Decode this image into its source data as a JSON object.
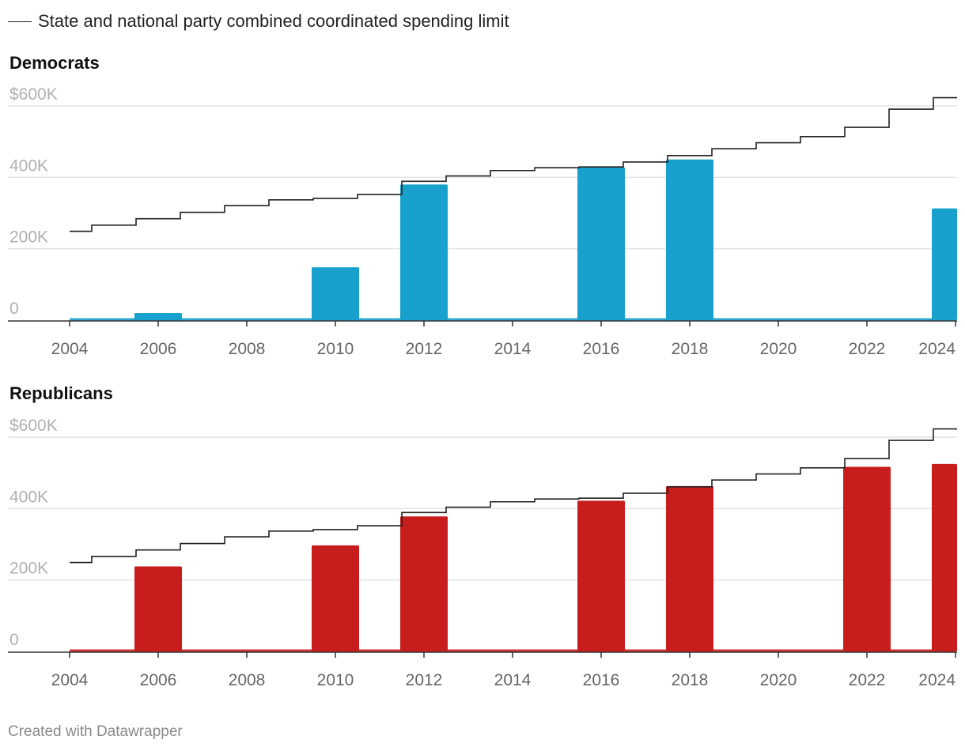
{
  "legend": {
    "label": "State and national party combined coordinated spending limit",
    "color": "#222222"
  },
  "footer": {
    "credit": "Created with Datawrapper"
  },
  "chart_data": [
    {
      "type": "bar",
      "title": "Democrats",
      "color": "#18a1cd",
      "ylim": [
        0,
        600000
      ],
      "yticks": [
        {
          "value": 0,
          "label": "0"
        },
        {
          "value": 200000,
          "label": "200K"
        },
        {
          "value": 400000,
          "label": "400K"
        },
        {
          "value": 600000,
          "label": "$600K"
        }
      ],
      "xticks": [
        {
          "value": 2004,
          "label": "2004"
        },
        {
          "value": 2006,
          "label": "2006"
        },
        {
          "value": 2008,
          "label": "2008"
        },
        {
          "value": 2010,
          "label": "2010"
        },
        {
          "value": 2012,
          "label": "2012"
        },
        {
          "value": 2014,
          "label": "2014"
        },
        {
          "value": 2016,
          "label": "2016"
        },
        {
          "value": 2018,
          "label": "2018"
        },
        {
          "value": 2020,
          "label": "2020"
        },
        {
          "value": 2022,
          "label": "2022"
        },
        {
          "value": 2024,
          "label": "2024"
        }
      ],
      "years": [
        2004,
        2006,
        2008,
        2010,
        2012,
        2014,
        2016,
        2018,
        2020,
        2022,
        2024
      ],
      "values": [
        0,
        20000,
        0,
        148000,
        380000,
        0,
        428000,
        450000,
        0,
        0,
        313000
      ],
      "limit": {
        "name": "State and national party combined coordinated spending limit",
        "years": [
          2004,
          2005,
          2006,
          2007,
          2008,
          2009,
          2010,
          2011,
          2012,
          2013,
          2014,
          2015,
          2016,
          2017,
          2018,
          2019,
          2020,
          2021,
          2022,
          2023,
          2024
        ],
        "values": [
          249000,
          266000,
          284000,
          302000,
          321000,
          337000,
          341000,
          352000,
          389000,
          404000,
          419000,
          427000,
          429000,
          443000,
          461000,
          480000,
          497000,
          514000,
          540000,
          591000,
          623000
        ]
      }
    },
    {
      "type": "bar",
      "title": "Republicans",
      "color": "#c71e1d",
      "ylim": [
        0,
        600000
      ],
      "yticks": [
        {
          "value": 0,
          "label": "0"
        },
        {
          "value": 200000,
          "label": "200K"
        },
        {
          "value": 400000,
          "label": "400K"
        },
        {
          "value": 600000,
          "label": "$600K"
        }
      ],
      "xticks": [
        {
          "value": 2004,
          "label": "2004"
        },
        {
          "value": 2006,
          "label": "2006"
        },
        {
          "value": 2008,
          "label": "2008"
        },
        {
          "value": 2010,
          "label": "2010"
        },
        {
          "value": 2012,
          "label": "2012"
        },
        {
          "value": 2014,
          "label": "2014"
        },
        {
          "value": 2016,
          "label": "2016"
        },
        {
          "value": 2018,
          "label": "2018"
        },
        {
          "value": 2020,
          "label": "2020"
        },
        {
          "value": 2022,
          "label": "2022"
        },
        {
          "value": 2024,
          "label": "2024"
        }
      ],
      "years": [
        2004,
        2006,
        2008,
        2010,
        2012,
        2014,
        2016,
        2018,
        2020,
        2022,
        2024
      ],
      "values": [
        0,
        238000,
        0,
        297000,
        378000,
        0,
        422000,
        463000,
        0,
        517000,
        525000
      ],
      "limit": {
        "name": "State and national party combined coordinated spending limit",
        "years": [
          2004,
          2005,
          2006,
          2007,
          2008,
          2009,
          2010,
          2011,
          2012,
          2013,
          2014,
          2015,
          2016,
          2017,
          2018,
          2019,
          2020,
          2021,
          2022,
          2023,
          2024
        ],
        "values": [
          249000,
          266000,
          284000,
          302000,
          321000,
          337000,
          341000,
          352000,
          389000,
          404000,
          419000,
          427000,
          429000,
          443000,
          461000,
          480000,
          497000,
          514000,
          540000,
          591000,
          623000
        ]
      }
    }
  ]
}
